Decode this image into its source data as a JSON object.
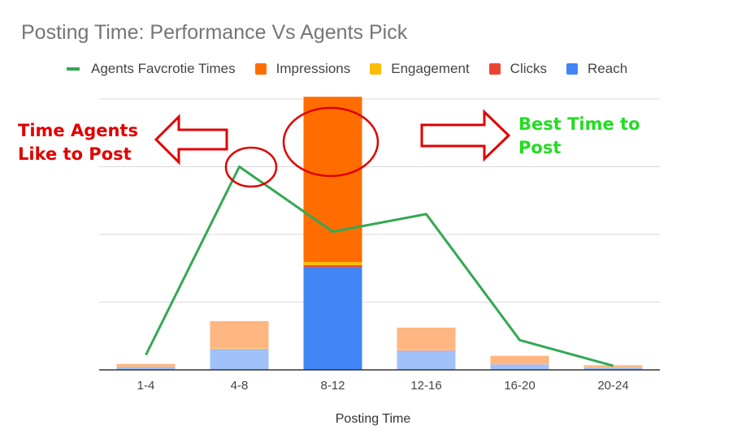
{
  "chart_data": {
    "type": "bar",
    "stacked": true,
    "title": "Posting Time: Performance Vs Agents Pick",
    "xlabel": "Posting Time",
    "ylabel": "",
    "categories": [
      "1-4",
      "4-8",
      "8-12",
      "12-16",
      "16-20",
      "20-24"
    ],
    "ylim": [
      0,
      100
    ],
    "grid": true,
    "legend_position": "top",
    "series": [
      {
        "name": "Reach",
        "kind": "bar",
        "color": "#4285f4",
        "values": [
          1.0,
          7.5,
          38,
          7,
          2,
          0.8
        ]
      },
      {
        "name": "Clicks",
        "kind": "bar",
        "color": "#ea4335",
        "values": [
          0.2,
          0.3,
          0.6,
          0.4,
          0.1,
          0.1
        ]
      },
      {
        "name": "Engagement",
        "kind": "bar",
        "color": "#fbbc04",
        "values": [
          0.1,
          0.2,
          1.2,
          0.2,
          0.1,
          0.1
        ]
      },
      {
        "name": "Impressions",
        "kind": "bar",
        "color": "#ff6d01",
        "values": [
          0.9,
          10,
          61,
          8,
          3,
          0.7
        ]
      },
      {
        "name": "Agents Favcrotie Times",
        "kind": "line",
        "color": "#34a853",
        "values": [
          5.5,
          75,
          51,
          57.5,
          11,
          1.5
        ]
      }
    ],
    "highlighted_category": "8-12",
    "annotations": [
      {
        "text_lines": [
          "Time Agents",
          "Like to Post"
        ],
        "color": "#e00000",
        "arrow": "left"
      },
      {
        "text_lines": [
          "Best Time to",
          "Post"
        ],
        "color": "#22dd22",
        "arrow": "right"
      }
    ]
  }
}
